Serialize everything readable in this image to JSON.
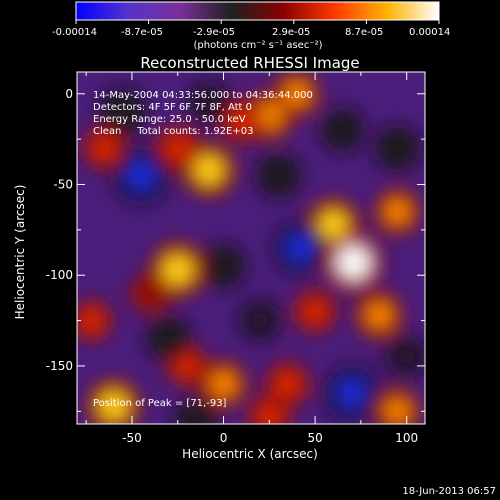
{
  "colorbar": {
    "tick_labels": [
      "-0.00014",
      "-8.7e-05",
      "-2.9e-05",
      "2.9e-05",
      "8.7e-05",
      "0.00014"
    ],
    "units_label": "(photons cm⁻² s⁻¹ asec⁻²)",
    "colormap": [
      "#0000ff",
      "#5533cc",
      "#7a2f9a",
      "#202020",
      "#8a0000",
      "#ff3a00",
      "#ffb200",
      "#ffffff"
    ]
  },
  "plot": {
    "title": "Reconstructed RHESSI Image",
    "xlabel": "Heliocentric X (arcsec)",
    "ylabel": "Heliocentric Y (arcsec)",
    "xlim": [
      -80,
      110
    ],
    "ylim": [
      -182,
      12
    ],
    "x_ticks": [
      -50,
      0,
      50,
      100
    ],
    "y_ticks": [
      0,
      -50,
      -100,
      -150
    ],
    "x_tick_labels": [
      "-50",
      "0",
      "50",
      "100"
    ],
    "y_tick_labels": [
      "0",
      "-50",
      "-100",
      "-150"
    ]
  },
  "annotations": {
    "time_range": "14-May-2004 04:33:56.000 to 04:36:44.000",
    "detectors": "Detectors: 4F 5F 6F 7F 8F, Att 0",
    "energy_range": "Energy Range: 25.0 - 50.0 keV",
    "clean_counts": "Clean     Total counts: 1.92E+03",
    "peak_position": "Position of Peak = [71,-93]"
  },
  "footer": {
    "timestamp": "18-Jun-2013 06:57"
  },
  "image_features": [
    {
      "x": 71,
      "y": -93,
      "level": 1.0
    },
    {
      "x": 60,
      "y": -72,
      "level": 0.75
    },
    {
      "x": 95,
      "y": -65,
      "level": 0.55
    },
    {
      "x": 85,
      "y": -122,
      "level": 0.6
    },
    {
      "x": 50,
      "y": -120,
      "level": 0.45
    },
    {
      "x": -8,
      "y": -42,
      "level": 0.8
    },
    {
      "x": -25,
      "y": -30,
      "level": 0.5
    },
    {
      "x": 25,
      "y": -12,
      "level": 0.65
    },
    {
      "x": 40,
      "y": 0,
      "level": 0.55
    },
    {
      "x": 10,
      "y": -15,
      "level": 0.45
    },
    {
      "x": -25,
      "y": -97,
      "level": 0.85
    },
    {
      "x": -40,
      "y": -110,
      "level": 0.35
    },
    {
      "x": -65,
      "y": -30,
      "level": 0.45
    },
    {
      "x": -72,
      "y": -125,
      "level": 0.4
    },
    {
      "x": -60,
      "y": -172,
      "level": 0.8
    },
    {
      "x": -20,
      "y": -150,
      "level": 0.4
    },
    {
      "x": 0,
      "y": -160,
      "level": 0.6
    },
    {
      "x": 35,
      "y": -160,
      "level": 0.5
    },
    {
      "x": 25,
      "y": -178,
      "level": 0.45
    },
    {
      "x": 95,
      "y": -175,
      "level": 0.55
    },
    {
      "x": -45,
      "y": -45,
      "level": -0.85
    },
    {
      "x": -55,
      "y": -10,
      "level": -0.55
    },
    {
      "x": -8,
      "y": -5,
      "level": -0.4
    },
    {
      "x": 30,
      "y": -45,
      "level": -0.5
    },
    {
      "x": 42,
      "y": -85,
      "level": -0.75
    },
    {
      "x": 65,
      "y": -20,
      "level": -0.45
    },
    {
      "x": 95,
      "y": -30,
      "level": -0.5
    },
    {
      "x": 0,
      "y": -95,
      "level": -0.45
    },
    {
      "x": -30,
      "y": -135,
      "level": -0.5
    },
    {
      "x": 20,
      "y": -125,
      "level": -0.4
    },
    {
      "x": 70,
      "y": -165,
      "level": -0.8
    },
    {
      "x": -15,
      "y": -180,
      "level": -0.45
    },
    {
      "x": 100,
      "y": -145,
      "level": -0.4
    }
  ]
}
